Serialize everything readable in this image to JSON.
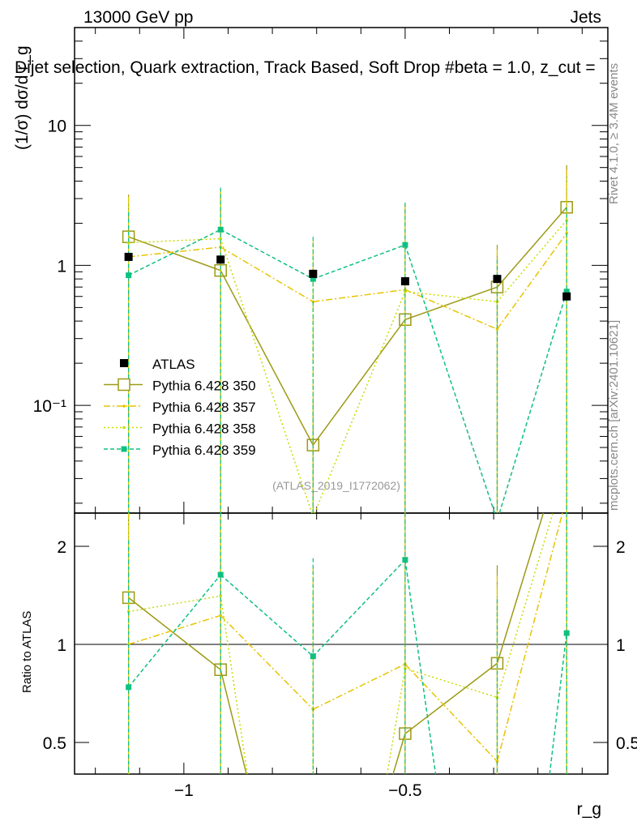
{
  "header": {
    "left": "13000 GeV pp",
    "right": "Jets"
  },
  "chart_data": {
    "type": "line",
    "title": "Dijet selection, Quark extraction, Track Based, Soft Drop #beta = 1.0, z_cut =",
    "ylabel": "(1/σ) dσ/d r_g",
    "xlabel": "r_g",
    "ratio_ylabel": "Ratio to ATLAS",
    "side_label_top": "Rivet 4.1.0, ≥ 3.4M events",
    "side_label_bottom": "mcplots.cern.ch [arXiv:2401.10621]",
    "analysis_label": "(ATLAS_2019_I1772062)",
    "xlim": [
      -1.247,
      -0.042
    ],
    "ylim": [
      0.017,
      50
    ],
    "yscale": "log",
    "ratio_ylim": [
      0.4,
      2.53
    ],
    "x_ticks": [
      {
        "v": -1,
        "label": "−1"
      },
      {
        "v": -0.5,
        "label": "−0.5"
      }
    ],
    "y_ticks": [
      {
        "v": 10,
        "label": "10"
      },
      {
        "v": 1,
        "label": "1"
      },
      {
        "v": 0.1,
        "label": "10⁻¹"
      }
    ],
    "ratio_ticks": [
      {
        "v": 2,
        "label": "2"
      },
      {
        "v": 1,
        "label": "1"
      },
      {
        "v": 0.5,
        "label": "0.5"
      }
    ],
    "x": [
      -1.125,
      -0.917,
      -0.708,
      -0.5,
      -0.292,
      -0.135
    ],
    "series": [
      {
        "name": "ATLAS",
        "color": "#000000",
        "style": "data",
        "values": [
          1.15,
          1.1,
          0.87,
          0.77,
          0.8,
          0.6
        ]
      },
      {
        "name": "Pythia 6.428 350",
        "color": "#9c9a16",
        "style": "solid-opensquare",
        "values": [
          1.6,
          0.92,
          0.052,
          0.41,
          0.7,
          2.6
        ],
        "err_high": [
          3.2,
          3.5,
          0.105,
          2.8,
          1.4,
          5.2
        ]
      },
      {
        "name": "Pythia 6.428 357",
        "color": "#e8c400",
        "style": "dashdot",
        "values": [
          1.15,
          1.35,
          0.55,
          0.67,
          0.35,
          1.7
        ],
        "err_high": [
          3.1,
          3.4,
          1.5,
          2.7,
          1.3,
          4.8
        ]
      },
      {
        "name": "Pythia 6.428 358",
        "color": "#c8dc00",
        "style": "dotted",
        "values": [
          1.45,
          1.55,
          0.016,
          0.65,
          0.55,
          2.1
        ],
        "err_high": [
          3.0,
          3.3,
          1.4,
          2.6,
          1.2,
          4.5
        ]
      },
      {
        "name": "Pythia 6.428 359",
        "color": "#10c080",
        "style": "dashed-square",
        "values": [
          0.85,
          1.8,
          0.8,
          1.4,
          0.015,
          0.65
        ],
        "err_high": [
          2.4,
          3.6,
          1.6,
          2.8,
          1.1,
          2.6
        ]
      }
    ],
    "legend_position": "center-left"
  }
}
